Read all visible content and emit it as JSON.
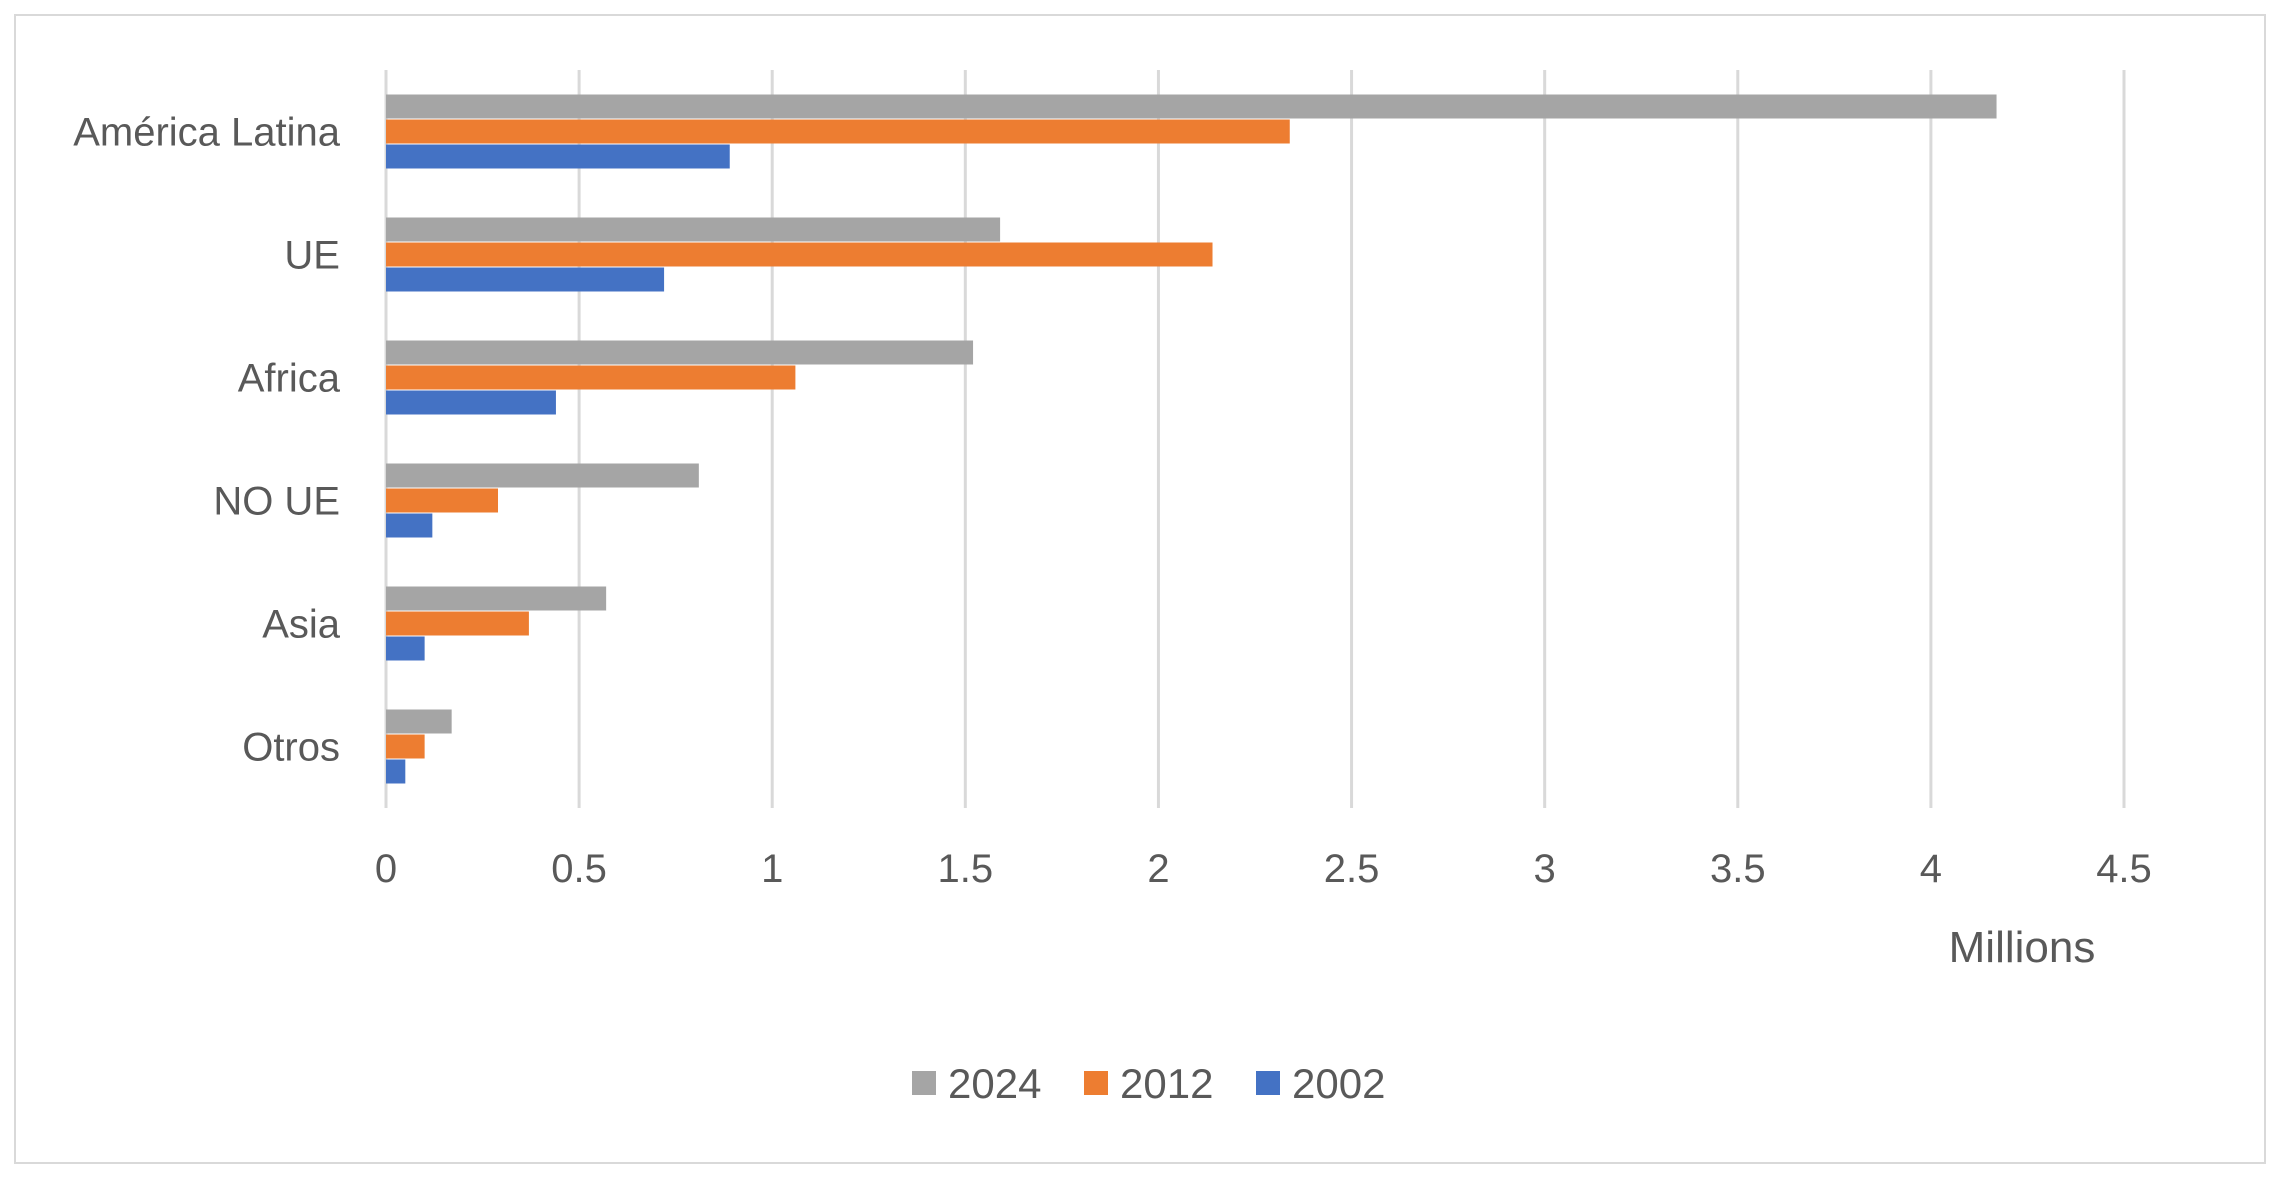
{
  "chart_data": {
    "type": "bar",
    "orientation": "horizontal",
    "categories": [
      "América Latina",
      "UE",
      "Africa",
      "NO UE",
      "Asia",
      "Otros"
    ],
    "series": [
      {
        "name": "2024",
        "color": "#a5a5a5",
        "values": [
          4.17,
          1.59,
          1.52,
          0.81,
          0.57,
          0.17
        ]
      },
      {
        "name": "2012",
        "color": "#ed7d31",
        "values": [
          2.34,
          2.14,
          1.06,
          0.29,
          0.37,
          0.1
        ]
      },
      {
        "name": "2002",
        "color": "#4472c4",
        "values": [
          0.89,
          0.72,
          0.44,
          0.12,
          0.1,
          0.05
        ]
      }
    ],
    "xticks": [
      "0",
      "0.5",
      "1",
      "1.5",
      "2",
      "2.5",
      "3",
      "3.5",
      "4",
      "4.5"
    ],
    "xlim": [
      0,
      4.5
    ],
    "unit_label": "Millions",
    "grid": true,
    "legend_position": "bottom",
    "legend_order": [
      "2024",
      "2012",
      "2002"
    ]
  }
}
